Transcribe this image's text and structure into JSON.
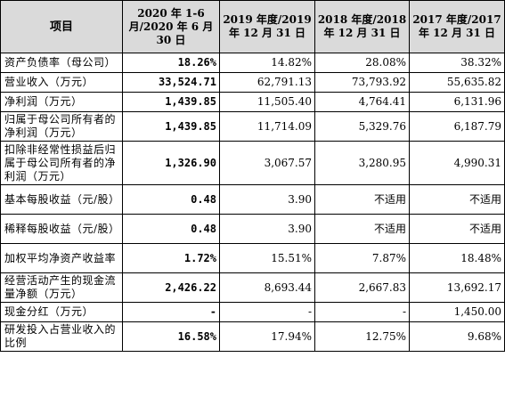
{
  "header": {
    "item": "项目",
    "cols": [
      "2020 年 1-6 月/2020 年 6 月 30 日",
      "2019 年度/2019 年 12 月 31 日",
      "2018 年度/2018 年 12 月 31 日",
      "2017 年度/2017 年 12 月 31 日"
    ]
  },
  "rows": [
    {
      "label": "资产负债率（母公司）",
      "values": [
        "18.26%",
        "14.82%",
        "28.08%",
        "38.32%"
      ]
    },
    {
      "label": "营业收入（万元）",
      "values": [
        "33,524.71",
        "62,791.13",
        "73,793.92",
        "55,635.82"
      ]
    },
    {
      "label": "净利润（万元）",
      "values": [
        "1,439.85",
        "11,505.40",
        "4,764.41",
        "6,131.96"
      ]
    },
    {
      "label": "归属于母公司所有者的净利润（万元）",
      "values": [
        "1,439.85",
        "11,714.09",
        "5,329.76",
        "6,187.79"
      ]
    },
    {
      "label": "扣除非经常性损益后归属于母公司所有者的净利润（万元）",
      "values": [
        "1,326.90",
        "3,067.57",
        "3,280.95",
        "4,990.31"
      ]
    },
    {
      "label": "基本每股收益（元/股）",
      "values": [
        "0.48",
        "3.90",
        "不适用",
        "不适用"
      ]
    },
    {
      "label": "稀释每股收益（元/股）",
      "values": [
        "0.48",
        "3.90",
        "不适用",
        "不适用"
      ]
    },
    {
      "label": "加权平均净资产收益率",
      "values": [
        "1.72%",
        "15.51%",
        "7.87%",
        "18.48%"
      ]
    },
    {
      "label": "经营活动产生的现金流量净额（万元）",
      "values": [
        "2,426.22",
        "8,693.44",
        "2,667.83",
        "13,692.17"
      ]
    },
    {
      "label": "现金分红（万元）",
      "values": [
        "-",
        "-",
        "-",
        "1,450.00"
      ]
    },
    {
      "label": "研发投入占营业收入的比例",
      "values": [
        "16.58%",
        "17.94%",
        "12.75%",
        "9.68%"
      ]
    }
  ]
}
